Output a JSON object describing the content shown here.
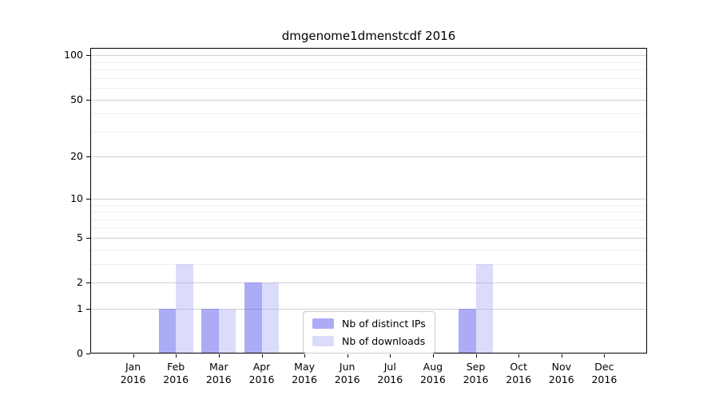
{
  "chart_data": {
    "type": "bar",
    "title": "dmgenome1dmenstcdf 2016",
    "year_label": "2016",
    "categories": [
      "Jan",
      "Feb",
      "Mar",
      "Apr",
      "May",
      "Jun",
      "Jul",
      "Aug",
      "Sep",
      "Oct",
      "Nov",
      "Dec"
    ],
    "series": [
      {
        "name": "Nb of distinct IPs",
        "color": "#5f5fee",
        "opacity": 0.52,
        "values": [
          0,
          1,
          1,
          2,
          0,
          0,
          0,
          0,
          1,
          0,
          0,
          0
        ]
      },
      {
        "name": "Nb of downloads",
        "color": "#afaff6",
        "opacity": 0.45,
        "values": [
          0,
          3,
          1,
          2,
          0,
          0,
          0,
          0,
          3,
          0,
          0,
          0
        ]
      }
    ],
    "yscale": "log1p",
    "ylim": [
      0,
      112
    ],
    "yticks": [
      0,
      1,
      2,
      5,
      10,
      20,
      50,
      100
    ],
    "ytick_labels": [
      "0",
      "1",
      "2",
      "5",
      "10",
      "20",
      "50",
      "100"
    ],
    "minor_gridlines": [
      3,
      4,
      6,
      7,
      8,
      9,
      30,
      40,
      60,
      70,
      80,
      90
    ],
    "grid": true,
    "legend": {
      "position": "lower-center",
      "labels": [
        "Nb of distinct IPs",
        "Nb of downloads"
      ]
    }
  },
  "colors": {
    "background": "#ffffff",
    "spine": "#000000",
    "major_grid": "#d0d0d0",
    "minor_grid": "#efefef",
    "text": "#000000",
    "legend_border": "#cccccc",
    "bar_distinct_ips_rendered": "#a9a9f4",
    "bar_downloads_rendered": "#dadaf9"
  }
}
